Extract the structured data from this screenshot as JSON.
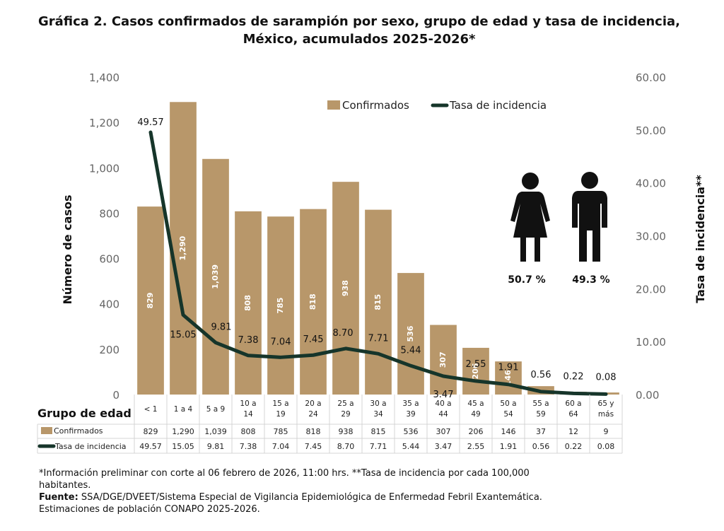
{
  "chart_data": {
    "type": "bar",
    "title": "Gráfica 2. Casos confirmados  de sarampión por sexo, grupo de edad y tasa de incidencia,",
    "title_line2": "México, acumulados 2025-2026*",
    "ylabel": "Número de casos",
    "y2label": "Tasa de incidencia**",
    "xlabel": "Grupo de edad",
    "ylim": [
      0,
      1400
    ],
    "y2lim": [
      0,
      60
    ],
    "yticks": [
      "0",
      "200",
      "400",
      "600",
      "800",
      "1,000",
      "1,200",
      "1,400"
    ],
    "y2ticks": [
      "0.00",
      "10.00",
      "20.00",
      "30.00",
      "40.00",
      "50.00",
      "60.00"
    ],
    "categories": [
      [
        "< 1"
      ],
      [
        "1 a 4"
      ],
      [
        "5 a 9"
      ],
      [
        "10 a",
        "14"
      ],
      [
        "15 a",
        "19"
      ],
      [
        "20 a",
        "24"
      ],
      [
        "25 a",
        "29"
      ],
      [
        "30 a",
        "34"
      ],
      [
        "35 a",
        "39"
      ],
      [
        "40 a",
        "44"
      ],
      [
        "45 a",
        "49"
      ],
      [
        "50 a",
        "54"
      ],
      [
        "55 a",
        "59"
      ],
      [
        "60 a",
        "64"
      ],
      [
        "65 y",
        "más"
      ]
    ],
    "series": [
      {
        "name": "Confirmados",
        "type": "bar",
        "color": "#b8976a",
        "values": [
          829,
          1290,
          1039,
          808,
          785,
          818,
          938,
          815,
          536,
          307,
          206,
          146,
          37,
          12,
          9
        ],
        "labels": [
          "829",
          "1,290",
          "1,039",
          "808",
          "785",
          "818",
          "938",
          "815",
          "536",
          "307",
          "206",
          "146",
          "37",
          "12",
          "9"
        ]
      },
      {
        "name": "Tasa de incidencia",
        "type": "line",
        "axis": "right",
        "color": "#16352a",
        "values": [
          49.57,
          15.05,
          9.81,
          7.38,
          7.04,
          7.45,
          8.7,
          7.71,
          5.44,
          3.47,
          2.55,
          1.91,
          0.56,
          0.22,
          0.08
        ],
        "labels": [
          "49.57",
          "15.05",
          "9.81",
          "7.38",
          "7.04",
          "7.45",
          "8.70",
          "7.71",
          "5.44",
          "3.47",
          "2.55",
          "1.91",
          "0.56",
          "0.22",
          "0.08"
        ]
      }
    ],
    "legend_position": "top-right",
    "grid": false
  },
  "sex": {
    "female_pct": "50.7 %",
    "male_pct": "49.3 %"
  },
  "footnotes": {
    "line1": "*Información preliminar con corte al 06 febrero de 2026, 11:00 hrs. **Tasa de incidencia por cada 100,000",
    "line2": "habitantes.",
    "source_label": "Fuente:",
    "source_text": " SSA/DGE/DVEET/Sistema Especial de Vigilancia Epidemiológica de Enfermedad Febril Exantemática.",
    "line4": "Estimaciones de población CONAPO 2025-2026."
  }
}
